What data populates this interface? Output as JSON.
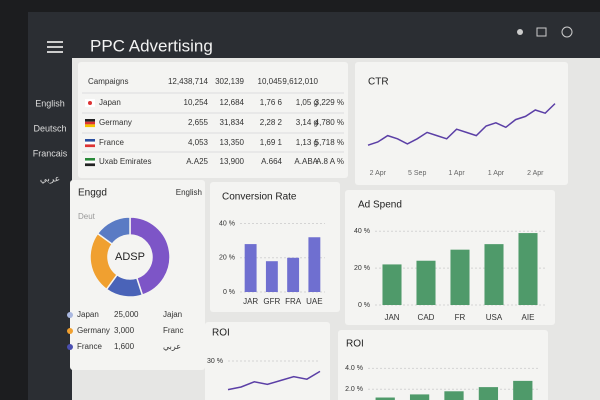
{
  "header": {
    "title": "PPC Advertising"
  },
  "sidebar": [
    "English",
    "Deutsch",
    "Francais",
    "عربي"
  ],
  "table": {
    "header": [
      "Campaigns",
      "12,438,714",
      "302,139",
      "10,045",
      "9,612,010"
    ],
    "rows": [
      [
        "Japan",
        "10,254",
        "12,684",
        "1,76 6",
        "1,05 g",
        "3,229 %"
      ],
      [
        "Germany",
        "2,655",
        "31,834",
        "2,28 2",
        "3,14 g",
        "4,780 %"
      ],
      [
        "France",
        "4,053",
        "13,350",
        "1,69 1",
        "1,13 g",
        "5,718 %"
      ],
      [
        "Uxab Emirates",
        "A.A25",
        "13,900",
        "A.664",
        "A.ABA",
        "A.8 A %"
      ]
    ]
  },
  "chart_data": [
    {
      "type": "line",
      "title": "CTR",
      "color": "#5b3fa6",
      "x": [
        0,
        1,
        2,
        3,
        4,
        5,
        6,
        7,
        8,
        9,
        10,
        11,
        12,
        13,
        14,
        15,
        16,
        17,
        18,
        19
      ],
      "values": [
        2,
        2.5,
        3.5,
        3,
        2.2,
        3,
        4,
        3.5,
        3,
        4.5,
        4,
        3.5,
        5,
        5.5,
        4.8,
        6,
        6.5,
        7.5,
        7,
        8.5
      ],
      "xlim": [
        0,
        19
      ],
      "ylim": [
        0,
        10
      ],
      "xticks": [
        {
          "value": 1,
          "label": "2 Apr"
        },
        {
          "value": 5,
          "label": "5 Sep"
        },
        {
          "value": 9,
          "label": "1 Apr"
        },
        {
          "value": 13,
          "label": "1 Apr"
        },
        {
          "value": 17,
          "label": "2 Apr"
        }
      ]
    },
    {
      "type": "bar",
      "title": "Conversion Rate",
      "color": "#6f6fd0",
      "categories": [
        "JAR",
        "GFR",
        "FRA",
        "UAE"
      ],
      "values": [
        28,
        18,
        20,
        32
      ],
      "ylim": [
        0,
        45
      ],
      "yticks": [
        {
          "value": 0,
          "label": "0 %"
        },
        {
          "value": 20,
          "label": "20 %"
        },
        {
          "value": 40,
          "label": "40 %"
        }
      ],
      "grid": true
    },
    {
      "type": "bar",
      "title": "Ad Spend",
      "color": "#4f9a6a",
      "categories": [
        "JAN",
        "CAD",
        "FR",
        "USA",
        "AIE"
      ],
      "values": [
        22,
        24,
        30,
        33,
        39
      ],
      "ylim": [
        0,
        45
      ],
      "yticks": [
        {
          "value": 0,
          "label": "0 %"
        },
        {
          "value": 20,
          "label": "20 %"
        },
        {
          "value": 40,
          "label": "40 %"
        }
      ],
      "grid": true
    },
    {
      "type": "line",
      "title": "ROI",
      "color": "#5b3fa6",
      "x": [
        0,
        1,
        2,
        3,
        4,
        5,
        6,
        7
      ],
      "values": [
        8,
        10,
        14,
        12,
        15,
        18,
        16,
        22
      ],
      "xlim": [
        0,
        7
      ],
      "ylim": [
        0,
        40
      ],
      "yticks": [
        {
          "value": 30,
          "label": "30 %"
        }
      ],
      "grid": true
    },
    {
      "type": "bar",
      "title": "ROI",
      "color": "#4f9a6a",
      "categories": [
        null,
        null,
        null,
        null,
        null
      ],
      "values": [
        1.2,
        1.5,
        1.8,
        2.2,
        2.8
      ],
      "ylim": [
        0,
        5
      ],
      "yticks": [
        {
          "value": 2,
          "label": "2.0 %"
        },
        {
          "value": 4,
          "label": "4.0 %"
        }
      ],
      "grid": true
    },
    {
      "type": "donut",
      "title": "Enggd",
      "subtitle": "English",
      "annotations": [
        "Deut"
      ],
      "center_label": "ADSP",
      "values": [
        45,
        15,
        25,
        15
      ],
      "colors": [
        "#7d55c7",
        "#4a63b8",
        "#f0a030",
        "#5a7bc4"
      ],
      "legend": [
        {
          "name": "Japan",
          "value": "25,000",
          "extra": "Jajan",
          "color": "#aab8e0"
        },
        {
          "name": "Germany",
          "value": "3,000",
          "extra": "Franc",
          "color": "#f0a030"
        },
        {
          "name": "France",
          "value": "1,600",
          "extra": "عربي",
          "color": "#4a4fb0"
        }
      ]
    }
  ]
}
